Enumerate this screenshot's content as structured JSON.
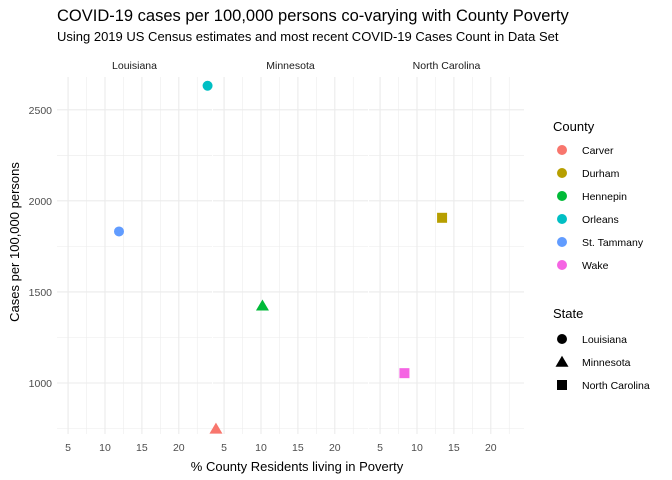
{
  "chart_data": {
    "type": "scatter",
    "title": "COVID-19 cases per 100,000 persons co-varying with County Poverty",
    "subtitle": "Using 2019 US Census estimates and most recent COVID-19 Cases Count in Data Set",
    "xlabel": "% County Residents living in Poverty",
    "ylabel": "Cases per 100,000 persons",
    "xlim": [
      3.5,
      24.5
    ],
    "ylim": [
      720,
      2680
    ],
    "x_ticks": [
      5,
      10,
      15,
      20
    ],
    "y_ticks": [
      1000,
      1500,
      2000,
      2500
    ],
    "grid": true,
    "facets": [
      "Louisiana",
      "Minnesota",
      "North Carolina"
    ],
    "legend_position": "right",
    "color_legend": {
      "title": "County",
      "entries": [
        {
          "label": "Carver",
          "color": "#F8766D"
        },
        {
          "label": "Durham",
          "color": "#B79F00"
        },
        {
          "label": "Hennepin",
          "color": "#00BA38"
        },
        {
          "label": "Orleans",
          "color": "#00BFC4"
        },
        {
          "label": "St. Tammany",
          "color": "#619CFF"
        },
        {
          "label": "Wake",
          "color": "#F564E3"
        }
      ]
    },
    "shape_legend": {
      "title": "State",
      "entries": [
        {
          "label": "Louisiana",
          "shape": "circle"
        },
        {
          "label": "Minnesota",
          "shape": "triangle"
        },
        {
          "label": "North Carolina",
          "shape": "square"
        }
      ]
    },
    "points": [
      {
        "state": "Louisiana",
        "county": "Orleans",
        "x": 23.9,
        "y": 2632
      },
      {
        "state": "Louisiana",
        "county": "St. Tammany",
        "x": 11.9,
        "y": 1832
      },
      {
        "state": "Minnesota",
        "county": "Hennepin",
        "x": 10.2,
        "y": 1424
      },
      {
        "state": "Minnesota",
        "county": "Carver",
        "x": 3.9,
        "y": 748
      },
      {
        "state": "North Carolina",
        "county": "Durham",
        "x": 13.4,
        "y": 1907
      },
      {
        "state": "North Carolina",
        "county": "Wake",
        "x": 8.3,
        "y": 1054
      }
    ]
  }
}
